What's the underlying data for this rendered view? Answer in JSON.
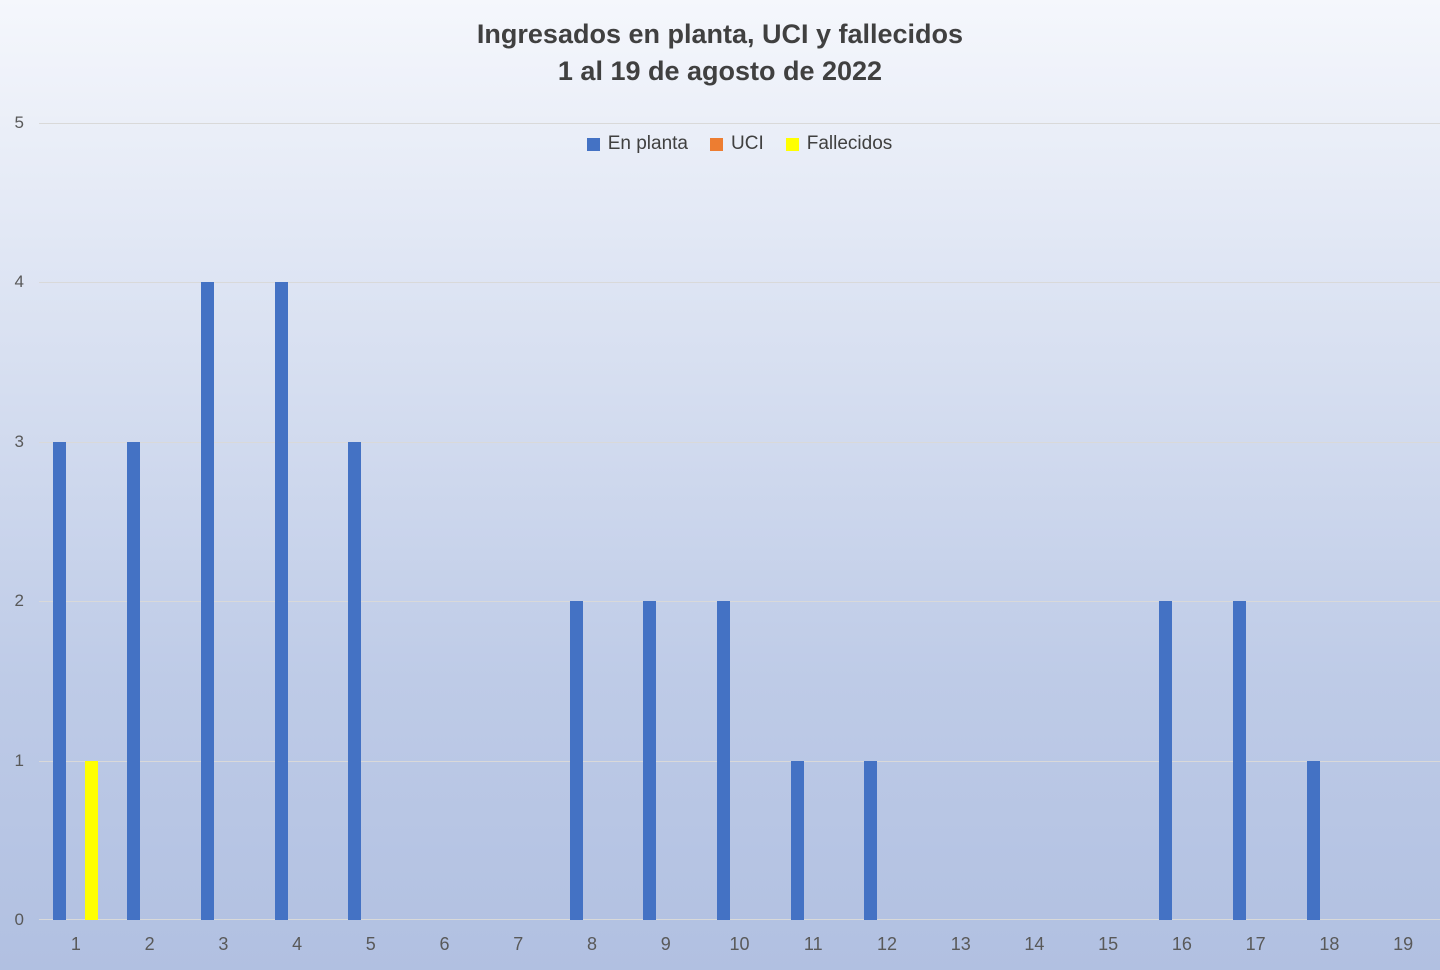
{
  "chart_data": {
    "type": "bar",
    "title": "Ingresados en planta, UCI y fallecidos",
    "subtitle": "1 al 19 de agosto de 2022",
    "categories": [
      "1",
      "2",
      "3",
      "4",
      "5",
      "6",
      "7",
      "8",
      "9",
      "10",
      "11",
      "12",
      "13",
      "14",
      "15",
      "16",
      "17",
      "18",
      "19"
    ],
    "series": [
      {
        "name": "En planta",
        "color": "#4472C4",
        "values": [
          3,
          3,
          4,
          4,
          3,
          0,
          0,
          2,
          2,
          2,
          1,
          1,
          0,
          0,
          0,
          2,
          2,
          1,
          0
        ]
      },
      {
        "name": "UCI",
        "color": "#ED7D31",
        "values": [
          0,
          0,
          0,
          0,
          0,
          0,
          0,
          0,
          0,
          0,
          0,
          0,
          0,
          0,
          0,
          0,
          0,
          0,
          0
        ]
      },
      {
        "name": "Fallecidos",
        "color": "#FFFF00",
        "values": [
          1,
          0,
          0,
          0,
          0,
          0,
          0,
          0,
          0,
          0,
          0,
          0,
          0,
          0,
          0,
          0,
          0,
          0,
          0
        ]
      }
    ],
    "xlabel": "",
    "ylabel": "",
    "ylim": [
      0,
      5
    ],
    "yticks": [
      0,
      1,
      2,
      3,
      4,
      5
    ],
    "grid": true,
    "legend_position": "top",
    "colors": {
      "gridline": "#D9D9D9",
      "title_text": "#404040",
      "axis_text": "#595959",
      "background_top": "#F5F7FC",
      "background_upper": "#DDE4F3",
      "background_lower": "#BECBE7",
      "background_bottom": "#B1C0E1"
    }
  }
}
